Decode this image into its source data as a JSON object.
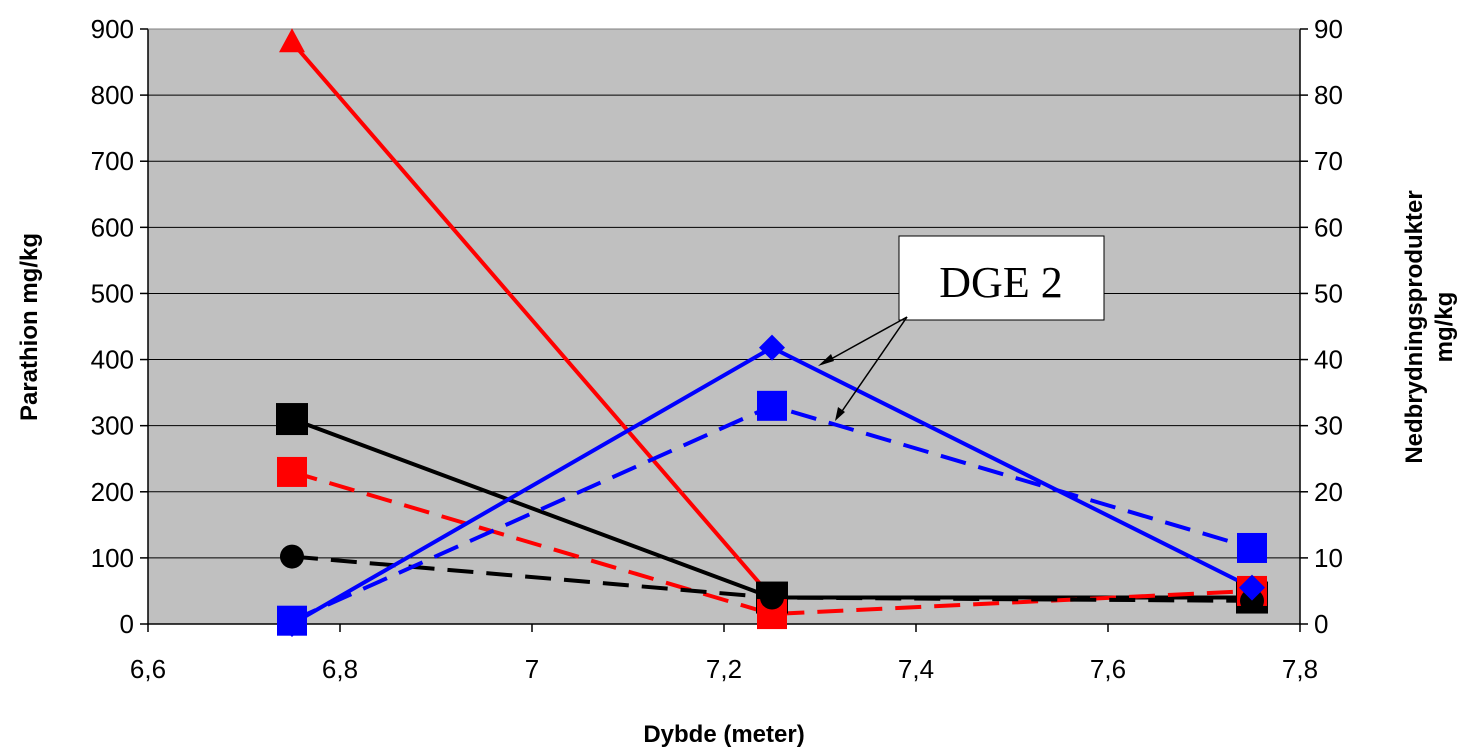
{
  "chart_data": {
    "type": "line",
    "xlabel": "Dybde (meter)",
    "ylabel": "Parathion mg/kg",
    "y2label": [
      "Nedbrydningsprodukter",
      "mg/kg"
    ],
    "xlim": [
      6.6,
      7.8
    ],
    "ylim": [
      0,
      900
    ],
    "y2lim": [
      0,
      90
    ],
    "x_ticks": [
      "6,6",
      "6,8",
      "7",
      "7,2",
      "7,4",
      "7,6",
      "7,8"
    ],
    "y_ticks": [
      "0",
      "100",
      "200",
      "300",
      "400",
      "500",
      "600",
      "700",
      "800",
      "900"
    ],
    "y2_ticks": [
      "0",
      "10",
      "20",
      "30",
      "40",
      "50",
      "60",
      "70",
      "80",
      "90"
    ],
    "grid": true,
    "plot_background": "#c0c0c0",
    "annotation": "DGE 2",
    "series": [
      {
        "axis": "left",
        "color": "#ff0000",
        "dash": "solid",
        "marker": "triangle",
        "x": [
          6.75,
          7.25,
          7.75
        ],
        "values": [
          880,
          40,
          40
        ]
      },
      {
        "axis": "left",
        "color": "#000000",
        "dash": "solid",
        "marker": "square",
        "x": [
          6.75,
          7.25,
          7.75
        ],
        "values": [
          310,
          40,
          40
        ]
      },
      {
        "axis": "left",
        "color": "#ff0000",
        "dash": "dashed",
        "marker": "square",
        "x": [
          6.75,
          7.25,
          7.75
        ],
        "values": [
          230,
          15,
          50
        ]
      },
      {
        "axis": "left",
        "color": "#000000",
        "dash": "dashed",
        "marker": "circle",
        "x": [
          6.75,
          7.25,
          7.75
        ],
        "values": [
          102,
          40,
          35
        ]
      },
      {
        "axis": "right",
        "color": "#0000ff",
        "dash": "solid",
        "marker": "diamond",
        "x": [
          6.75,
          7.25,
          7.75
        ],
        "values": [
          0,
          41.8,
          5.5
        ]
      },
      {
        "axis": "right",
        "color": "#0000ff",
        "dash": "dashed",
        "marker": "square",
        "x": [
          6.75,
          7.25,
          7.75
        ],
        "values": [
          0.5,
          33,
          11.5
        ]
      }
    ]
  }
}
